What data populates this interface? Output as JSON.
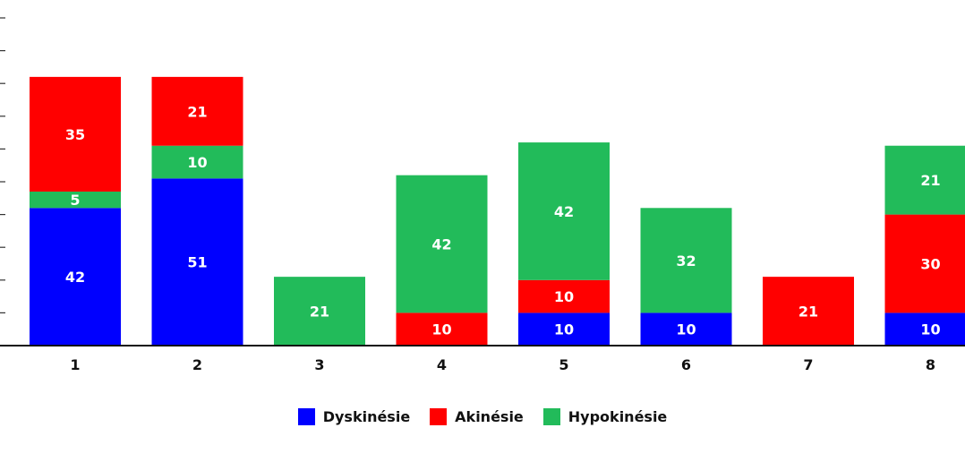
{
  "chart_data": {
    "type": "bar",
    "stacked": true,
    "categories": [
      "1",
      "2",
      "3",
      "4",
      "5",
      "6",
      "7",
      "8"
    ],
    "series": [
      {
        "name": "Dyskinésie",
        "color": "#0000ff",
        "values": [
          42,
          51,
          0,
          0,
          10,
          10,
          0,
          10
        ]
      },
      {
        "name": "Hypokinésie",
        "color": "#22bb5a",
        "values": [
          5,
          10,
          21,
          42,
          42,
          32,
          0,
          21
        ]
      },
      {
        "name": "Akinésie",
        "color": "#ff0000",
        "values": [
          35,
          21,
          0,
          10,
          10,
          0,
          21,
          30
        ]
      }
    ],
    "segments": [
      [
        {
          "series": 0,
          "value": 42
        },
        {
          "series": 1,
          "value": 5
        },
        {
          "series": 2,
          "value": 35
        }
      ],
      [
        {
          "series": 0,
          "value": 51
        },
        {
          "series": 1,
          "value": 10
        },
        {
          "series": 2,
          "value": 21
        }
      ],
      [
        {
          "series": 1,
          "value": 21
        }
      ],
      [
        {
          "series": 2,
          "value": 10
        },
        {
          "series": 1,
          "value": 42
        }
      ],
      [
        {
          "series": 0,
          "value": 10
        },
        {
          "series": 2,
          "value": 10
        },
        {
          "series": 1,
          "value": 42
        }
      ],
      [
        {
          "series": 0,
          "value": 10
        },
        {
          "series": 1,
          "value": 32
        }
      ],
      [
        {
          "series": 2,
          "value": 21
        }
      ],
      [
        {
          "series": 0,
          "value": 10
        },
        {
          "series": 2,
          "value": 30
        },
        {
          "series": 1,
          "value": 21
        }
      ]
    ],
    "legend_order": [
      0,
      2,
      1
    ],
    "legend_position": "bottom",
    "ylim": [
      0,
      100
    ],
    "grid": false,
    "title": "",
    "xlabel": "",
    "ylabel": ""
  }
}
